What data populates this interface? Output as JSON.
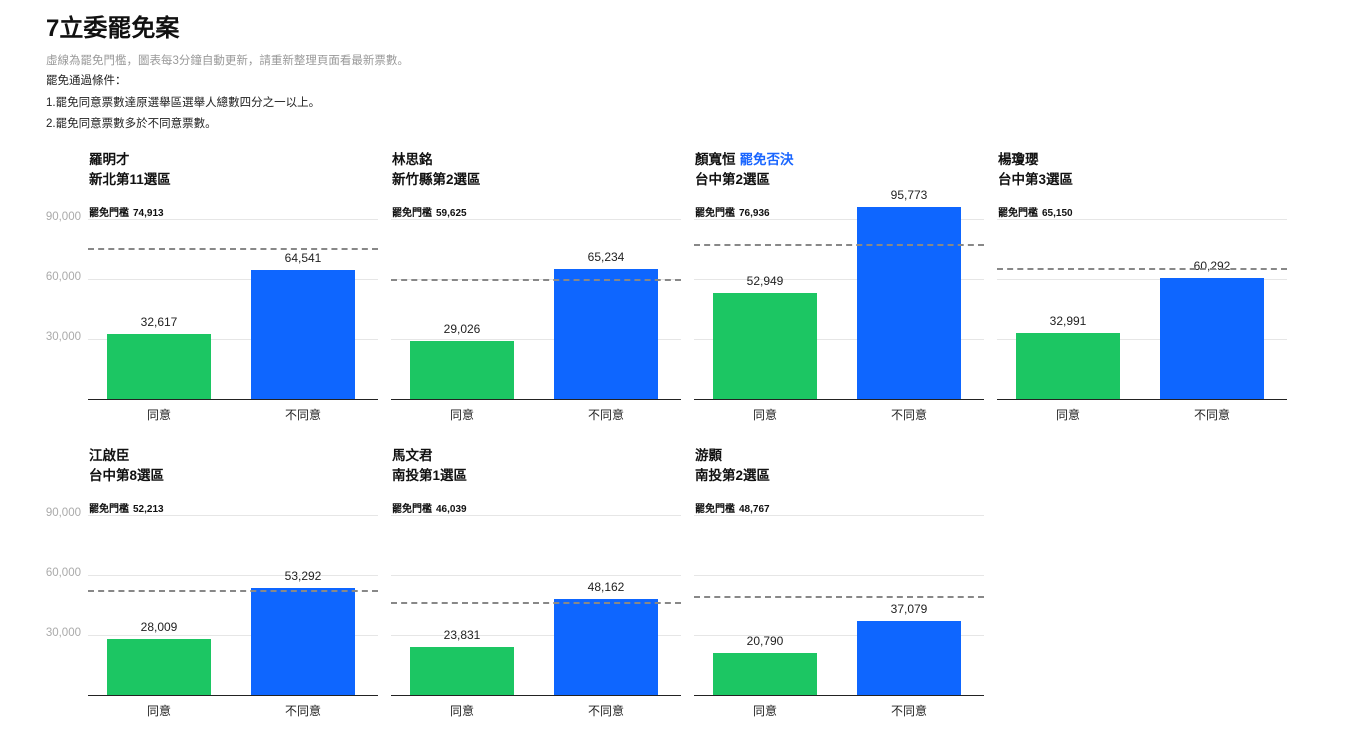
{
  "title": "7立委罷免案",
  "subtitle": "虛線為罷免門檻，圖表每3分鐘自動更新，請重新整理頁面看最新票數。",
  "conditions": {
    "heading": "罷免通過條件：",
    "rule1": "1.罷免同意票數達原選舉區選舉人總數四分之一以上。",
    "rule2": "2.罷免同意票數多於不同意票數。"
  },
  "colors": {
    "agree": "#1cc663",
    "disagree": "#0e66ff",
    "status": "#1a66ff",
    "threshold_line": "#888888"
  },
  "chart_data": {
    "type": "bar",
    "title": "7立委罷免案",
    "categories": [
      "同意",
      "不同意"
    ],
    "ylim": [
      0,
      90000
    ],
    "yticks": [
      30000,
      60000,
      90000
    ],
    "ytick_labels": [
      "30,000",
      "60,000",
      "90,000"
    ],
    "threshold_label": "罷免門檻",
    "grid": true,
    "layout": "small multiples, 4 columns x 2 rows",
    "panels": [
      {
        "name": "羅明才",
        "status": "",
        "district": "新北第11選區",
        "threshold": 74913,
        "threshold_text": "74,913",
        "values": [
          32617,
          64541
        ],
        "value_labels": [
          "32,617",
          "64,541"
        ]
      },
      {
        "name": "林思銘",
        "status": "",
        "district": "新竹縣第2選區",
        "threshold": 59625,
        "threshold_text": "59,625",
        "values": [
          29026,
          65234
        ],
        "value_labels": [
          "29,026",
          "65,234"
        ]
      },
      {
        "name": "顏寬恒",
        "status": "罷免否決",
        "district": "台中第2選區",
        "threshold": 76936,
        "threshold_text": "76,936",
        "values": [
          52949,
          95773
        ],
        "value_labels": [
          "52,949",
          "95,773"
        ]
      },
      {
        "name": "楊瓊瓔",
        "status": "",
        "district": "台中第3選區",
        "threshold": 65150,
        "threshold_text": "65,150",
        "values": [
          32991,
          60292
        ],
        "value_labels": [
          "32,991",
          "60,292"
        ]
      },
      {
        "name": "江啟臣",
        "status": "",
        "district": "台中第8選區",
        "threshold": 52213,
        "threshold_text": "52,213",
        "values": [
          28009,
          53292
        ],
        "value_labels": [
          "28,009",
          "53,292"
        ]
      },
      {
        "name": "馬文君",
        "status": "",
        "district": "南投第1選區",
        "threshold": 46039,
        "threshold_text": "46,039",
        "values": [
          23831,
          48162
        ],
        "value_labels": [
          "23,831",
          "48,162"
        ]
      },
      {
        "name": "游顥",
        "status": "",
        "district": "南投第2選區",
        "threshold": 48767,
        "threshold_text": "48,767",
        "values": [
          20790,
          37079
        ],
        "value_labels": [
          "20,790",
          "37,079"
        ]
      }
    ]
  }
}
